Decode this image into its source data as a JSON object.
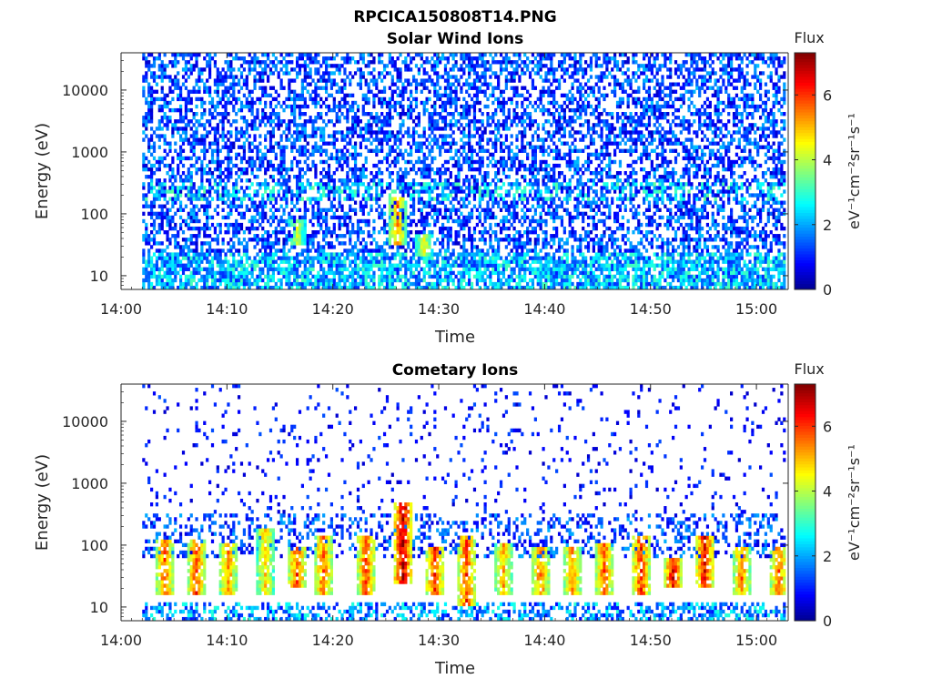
{
  "figure": {
    "title": "RPCICA150808T14.PNG"
  },
  "colorbar": {
    "title": "Flux",
    "label": "eV⁻¹cm⁻²sr⁻¹s⁻¹",
    "range": [
      0,
      7.3
    ],
    "ticks": [
      0,
      2,
      4,
      6
    ],
    "tick_labels": [
      "0",
      "2",
      "4",
      "6"
    ],
    "colormap": "jet",
    "colors": [
      "#00008f",
      "#0000ff",
      "#00ffff",
      "#ffff00",
      "#ff0000",
      "#800000"
    ]
  },
  "chart_data": [
    {
      "type": "heatmap",
      "title": "Solar Wind Ions",
      "xlabel": "Time",
      "ylabel": "Energy (eV)",
      "x_ticks": [
        "14:00",
        "14:10",
        "14:20",
        "14:30",
        "14:40",
        "14:50",
        "15:00"
      ],
      "x_range": [
        "14:00",
        "15:03"
      ],
      "data_start": "14:02",
      "y_ticks": [
        10,
        100,
        1000,
        10000
      ],
      "y_tick_labels": [
        "10",
        "100",
        "1000",
        "10000"
      ],
      "y_scale": "log",
      "y_range": [
        6,
        40000
      ],
      "grid": false,
      "features": [
        {
          "time": "14:16.5",
          "energy_low": 30,
          "energy_high": 80,
          "flux": 4.2
        },
        {
          "time": "14:26",
          "energy_low": 30,
          "energy_high": 200,
          "flux": 5.5
        },
        {
          "time": "14:28.5",
          "energy_low": 20,
          "energy_high": 50,
          "flux": 4.5
        }
      ]
    },
    {
      "type": "heatmap",
      "title": "Cometary Ions",
      "xlabel": "Time",
      "ylabel": "Energy (eV)",
      "x_ticks": [
        "14:00",
        "14:10",
        "14:20",
        "14:30",
        "14:40",
        "14:50",
        "15:00"
      ],
      "x_range": [
        "14:00",
        "15:03"
      ],
      "data_start": "14:02",
      "y_ticks": [
        10,
        100,
        1000,
        10000
      ],
      "y_tick_labels": [
        "10",
        "100",
        "1000",
        "10000"
      ],
      "y_scale": "log",
      "y_range": [
        6,
        40000
      ],
      "grid": false,
      "features": [
        {
          "time": "14:04",
          "energy_low": 15,
          "energy_high": 120,
          "flux": 5.8
        },
        {
          "time": "14:07",
          "energy_low": 15,
          "energy_high": 120,
          "flux": 6.0
        },
        {
          "time": "14:10",
          "energy_low": 15,
          "energy_high": 110,
          "flux": 5.5
        },
        {
          "time": "14:13.5",
          "energy_low": 15,
          "energy_high": 200,
          "flux": 5.0
        },
        {
          "time": "14:16.5",
          "energy_low": 20,
          "energy_high": 100,
          "flux": 6.0
        },
        {
          "time": "14:19",
          "energy_low": 15,
          "energy_high": 150,
          "flux": 5.8
        },
        {
          "time": "14:23",
          "energy_low": 15,
          "energy_high": 150,
          "flux": 6.0
        },
        {
          "time": "14:26.5",
          "energy_low": 25,
          "energy_high": 500,
          "flux": 7.0
        },
        {
          "time": "14:29.5",
          "energy_low": 15,
          "energy_high": 100,
          "flux": 6.2
        },
        {
          "time": "14:32.5",
          "energy_low": 10,
          "energy_high": 150,
          "flux": 6.0
        },
        {
          "time": "14:36",
          "energy_low": 15,
          "energy_high": 110,
          "flux": 5.2
        },
        {
          "time": "14:39.5",
          "energy_low": 15,
          "energy_high": 100,
          "flux": 5.6
        },
        {
          "time": "14:42.5",
          "energy_low": 15,
          "energy_high": 100,
          "flux": 5.4
        },
        {
          "time": "14:45.5",
          "energy_low": 15,
          "energy_high": 110,
          "flux": 5.8
        },
        {
          "time": "14:49",
          "energy_low": 15,
          "energy_high": 150,
          "flux": 6.2
        },
        {
          "time": "14:52",
          "energy_low": 20,
          "energy_high": 60,
          "flux": 6.5
        },
        {
          "time": "14:55",
          "energy_low": 20,
          "energy_high": 150,
          "flux": 6.5
        },
        {
          "time": "14:58.5",
          "energy_low": 15,
          "energy_high": 90,
          "flux": 5.6
        },
        {
          "time": "15:02",
          "energy_low": 15,
          "energy_high": 100,
          "flux": 5.8
        }
      ]
    }
  ]
}
